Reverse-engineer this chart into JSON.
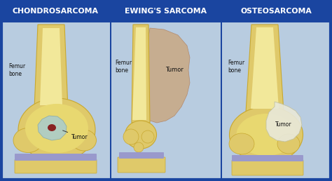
{
  "bg_color": "#1a45a0",
  "panel_bg_grad_top": "#b8cce0",
  "panel_bg_grad_bot": "#d8e8f0",
  "fig_width": 4.74,
  "fig_height": 2.58,
  "dpi": 100,
  "titles": [
    "CHONDROSARCOMA",
    "EWING'S SARCOMA",
    "OSTEOSARCOMA"
  ],
  "title_color": "#ffffff",
  "title_fontsize": 7.8,
  "title_fontweight": "bold",
  "label_fontsize": 5.5,
  "bone_color": "#dfc96a",
  "bone_edge": "#c8a830",
  "bone_inner": "#f2e89a",
  "bone_spongy": "#e8d870",
  "tumor1_color": "#aacccc",
  "tumor1_edge": "#88aaaa",
  "tumor2_color": "#c9a882",
  "tumor2_edge": "#b08060",
  "tumor3_color": "#e8e8d8",
  "tumor3_edge": "#c0c0a0",
  "cartilage_color": "#9999cc",
  "tibia_color": "#dfc96a",
  "dark_red": "#882222",
  "text_color": "#111111",
  "divider_color": "#1a45a0"
}
